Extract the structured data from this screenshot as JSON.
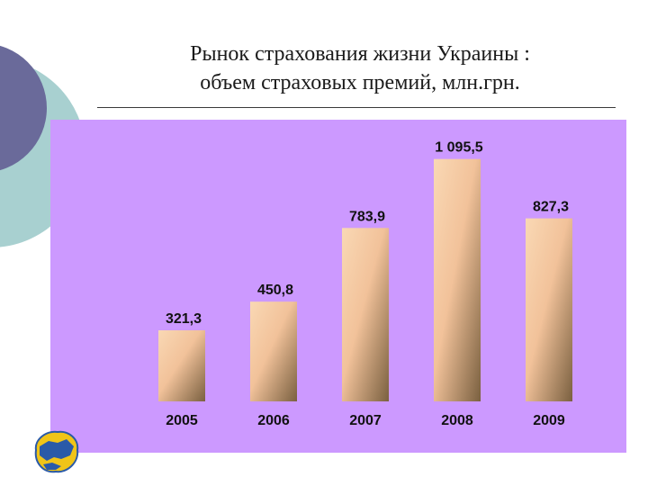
{
  "slide": {
    "title_line1": "Рынок страхования жизни Украины :",
    "title_line2": "объем страховых премий, млн.грн.",
    "colors": {
      "chart_background": "#cc99ff",
      "bar_light": "#f7cfa8",
      "bar_dark": "#7a6040",
      "decor_circle_dark": "#6a6a9a",
      "decor_circle_teal": "#a8d0d0"
    },
    "logo": {
      "icon": "ukraine-map-logo"
    }
  },
  "chart_data": {
    "type": "bar",
    "categories": [
      "2005",
      "2006",
      "2007",
      "2008",
      "2009"
    ],
    "values": [
      321.3,
      450.8,
      783.9,
      1095.5,
      827.3
    ],
    "value_labels": [
      "321,3",
      "450,8",
      "783,9",
      "1 095,5",
      "827,3"
    ],
    "title": "Рынок страхования жизни Украины : объем страховых премий, млн.грн.",
    "xlabel": "",
    "ylabel": "",
    "ylim": [
      0,
      1200
    ],
    "grid": false,
    "legend": "none"
  }
}
